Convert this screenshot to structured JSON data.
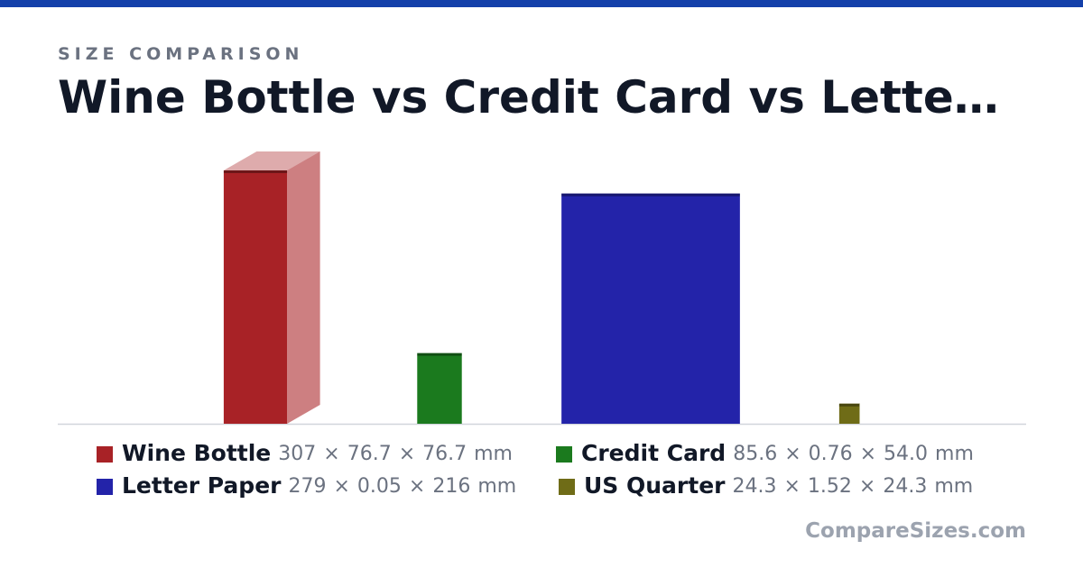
{
  "chart_data": {
    "type": "box3d",
    "subtitle": "SIZE COMPARISON",
    "title": "Wine Bottle vs Credit Card vs Lette…",
    "unit": "mm",
    "separator": "×",
    "watermark": "CompareSizes.com",
    "series": [
      {
        "name": "Wine Bottle",
        "color": "#a82226",
        "values": [
          307,
          76.7,
          76.7
        ],
        "value_labels": [
          "307",
          "76.7",
          "76.7"
        ]
      },
      {
        "name": "Credit Card",
        "color": "#1b7a1e",
        "values": [
          85.6,
          0.76,
          54.0
        ],
        "value_labels": [
          "85.6",
          "0.76",
          "54.0"
        ]
      },
      {
        "name": "Letter Paper",
        "color": "#2323a9",
        "values": [
          279,
          0.05,
          216
        ],
        "value_labels": [
          "279",
          "0.05",
          "216"
        ]
      },
      {
        "name": "US Quarter",
        "color": "#6f6c17",
        "values": [
          24.3,
          1.52,
          24.3
        ],
        "value_labels": [
          "24.3",
          "1.52",
          "24.3"
        ]
      }
    ]
  }
}
